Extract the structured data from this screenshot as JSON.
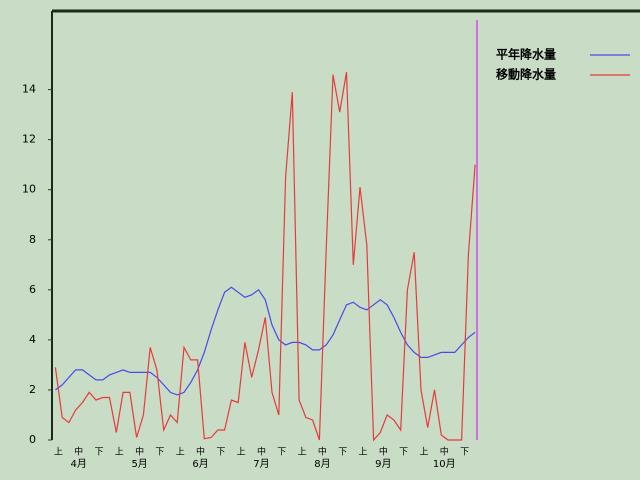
{
  "chart_data": {
    "type": "line",
    "categories": [
      "上",
      null,
      null,
      "中",
      null,
      null,
      "下",
      null,
      null,
      "上",
      null,
      null,
      "中",
      null,
      null,
      "下",
      null,
      null,
      "上",
      null,
      null,
      "中",
      null,
      null,
      "下",
      null,
      null,
      "上",
      null,
      null,
      "中",
      null,
      null,
      "下",
      null,
      null,
      "上",
      null,
      null,
      "中",
      null,
      null,
      "下",
      null,
      null,
      "上",
      null,
      null,
      "中",
      null,
      null,
      "下",
      null,
      null,
      "上",
      null,
      null,
      "中",
      null,
      null,
      "下",
      null,
      null
    ],
    "months": [
      null,
      null,
      null,
      "4月",
      null,
      null,
      null,
      null,
      null,
      null,
      null,
      null,
      "5月",
      null,
      null,
      null,
      null,
      null,
      null,
      null,
      null,
      "6月",
      null,
      null,
      null,
      null,
      null,
      null,
      null,
      null,
      "7月",
      null,
      null,
      null,
      null,
      null,
      null,
      null,
      null,
      "8月",
      null,
      null,
      null,
      null,
      null,
      null,
      null,
      null,
      "9月",
      null,
      null,
      null,
      null,
      null,
      null,
      null,
      null,
      "10月",
      null,
      null,
      null,
      null,
      null
    ],
    "series": [
      {
        "name": "平年降水量",
        "color": "#4a4ae8",
        "values": [
          2.0,
          2.2,
          2.5,
          2.8,
          2.8,
          2.6,
          2.4,
          2.4,
          2.6,
          2.7,
          2.8,
          2.7,
          2.7,
          2.7,
          2.7,
          2.5,
          2.2,
          1.9,
          1.8,
          1.9,
          2.3,
          2.8,
          3.5,
          4.4,
          5.2,
          5.9,
          6.1,
          5.9,
          5.7,
          5.8,
          6.0,
          5.6,
          4.6,
          4.0,
          3.8,
          3.9,
          3.9,
          3.8,
          3.6,
          3.6,
          3.8,
          4.2,
          4.8,
          5.4,
          5.5,
          5.3,
          5.2,
          5.4,
          5.6,
          5.4,
          4.9,
          4.3,
          3.8,
          3.5,
          3.3,
          3.3,
          3.4,
          3.5,
          3.5,
          3.5,
          3.8,
          4.1,
          4.3
        ]
      },
      {
        "name": "移動降水量",
        "color": "#e83a3a",
        "values": [
          2.9,
          0.9,
          0.7,
          1.2,
          1.5,
          1.9,
          1.6,
          1.7,
          1.7,
          0.3,
          1.9,
          1.9,
          0.1,
          1.0,
          3.7,
          2.8,
          0.4,
          1.0,
          0.7,
          3.7,
          3.2,
          3.2,
          0.05,
          0.1,
          0.4,
          0.4,
          1.6,
          1.5,
          3.9,
          2.5,
          3.6,
          4.9,
          1.9,
          1.0,
          10.5,
          13.9,
          1.6,
          0.9,
          0.8,
          0.0,
          7.6,
          14.6,
          13.1,
          14.7,
          7.0,
          10.1,
          7.8,
          0.0,
          0.3,
          1.0,
          0.8,
          0.4,
          6.0,
          7.5,
          2.0,
          0.5,
          2.0,
          0.2,
          0.0,
          0.0,
          0.0,
          7.4,
          11.0
        ]
      }
    ],
    "ylim": [
      0,
      17.1
    ],
    "yticks": [
      0,
      2,
      4,
      6,
      8,
      10,
      12,
      14
    ]
  }
}
